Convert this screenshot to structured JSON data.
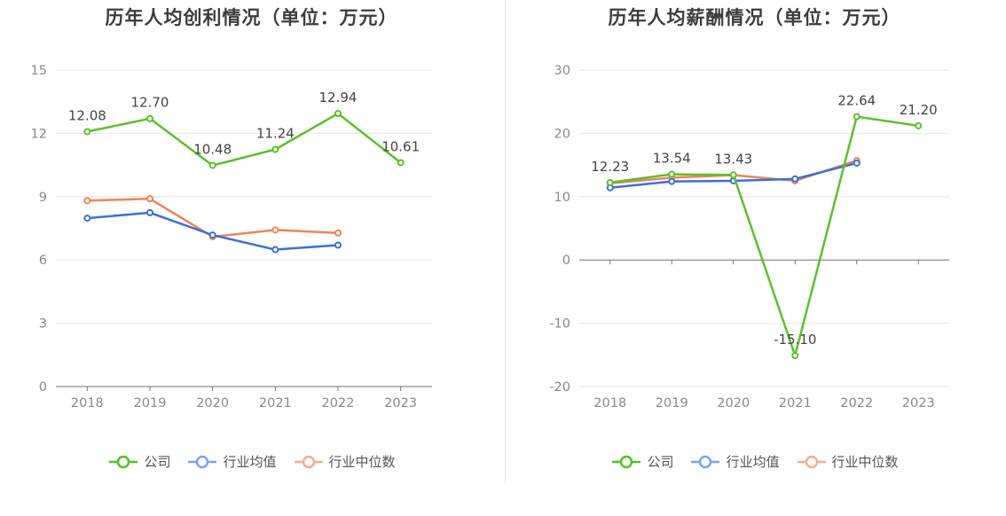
{
  "colors": {
    "公司": "#5cc02b",
    "行业均值": "#3b6fd8",
    "行业中位数": "#ee8456"
  },
  "legend_colors": {
    "公司": "#52c41a",
    "行业均值": "#7aa2f0",
    "行业中位数": "#f7ab8c"
  },
  "chart_data": [
    {
      "type": "line",
      "title": "历年人均创利情况（单位：万元）",
      "x": [
        "2018",
        "2019",
        "2020",
        "2021",
        "2022",
        "2023"
      ],
      "ylim": [
        0,
        15
      ],
      "yticks": [
        0,
        3,
        6,
        9,
        12,
        15
      ],
      "grid": true,
      "legend": "bottom-center",
      "labeled_series": "公司",
      "series": [
        {
          "name": "公司",
          "values": [
            12.08,
            12.7,
            10.48,
            11.24,
            12.94,
            10.61
          ],
          "labels": [
            "12.08",
            "12.70",
            "10.48",
            "11.24",
            "12.94",
            "10.61"
          ]
        },
        {
          "name": "行业均值",
          "values": [
            7.98,
            8.24,
            7.18,
            6.49,
            6.7,
            null
          ]
        },
        {
          "name": "行业中位数",
          "values": [
            8.81,
            8.9,
            7.1,
            7.42,
            7.28,
            null
          ]
        }
      ]
    },
    {
      "type": "line",
      "title": "历年人均薪酬情况（单位：万元）",
      "x": [
        "2018",
        "2019",
        "2020",
        "2021",
        "2022",
        "2023"
      ],
      "ylim": [
        -20,
        30
      ],
      "yticks": [
        -20,
        -10,
        0,
        10,
        20,
        30
      ],
      "grid": true,
      "legend": "bottom-center",
      "labeled_series": "公司",
      "series": [
        {
          "name": "公司",
          "values": [
            12.23,
            13.54,
            13.43,
            -15.1,
            22.64,
            21.2
          ],
          "labels": [
            "12.23",
            "13.54",
            "13.43",
            "-15.10",
            "22.64",
            "21.20"
          ]
        },
        {
          "name": "行业均值",
          "values": [
            11.4,
            12.4,
            12.5,
            12.8,
            15.3,
            null
          ]
        },
        {
          "name": "行业中位数",
          "values": [
            12.1,
            13.0,
            13.4,
            12.5,
            15.7,
            null
          ]
        }
      ]
    }
  ]
}
